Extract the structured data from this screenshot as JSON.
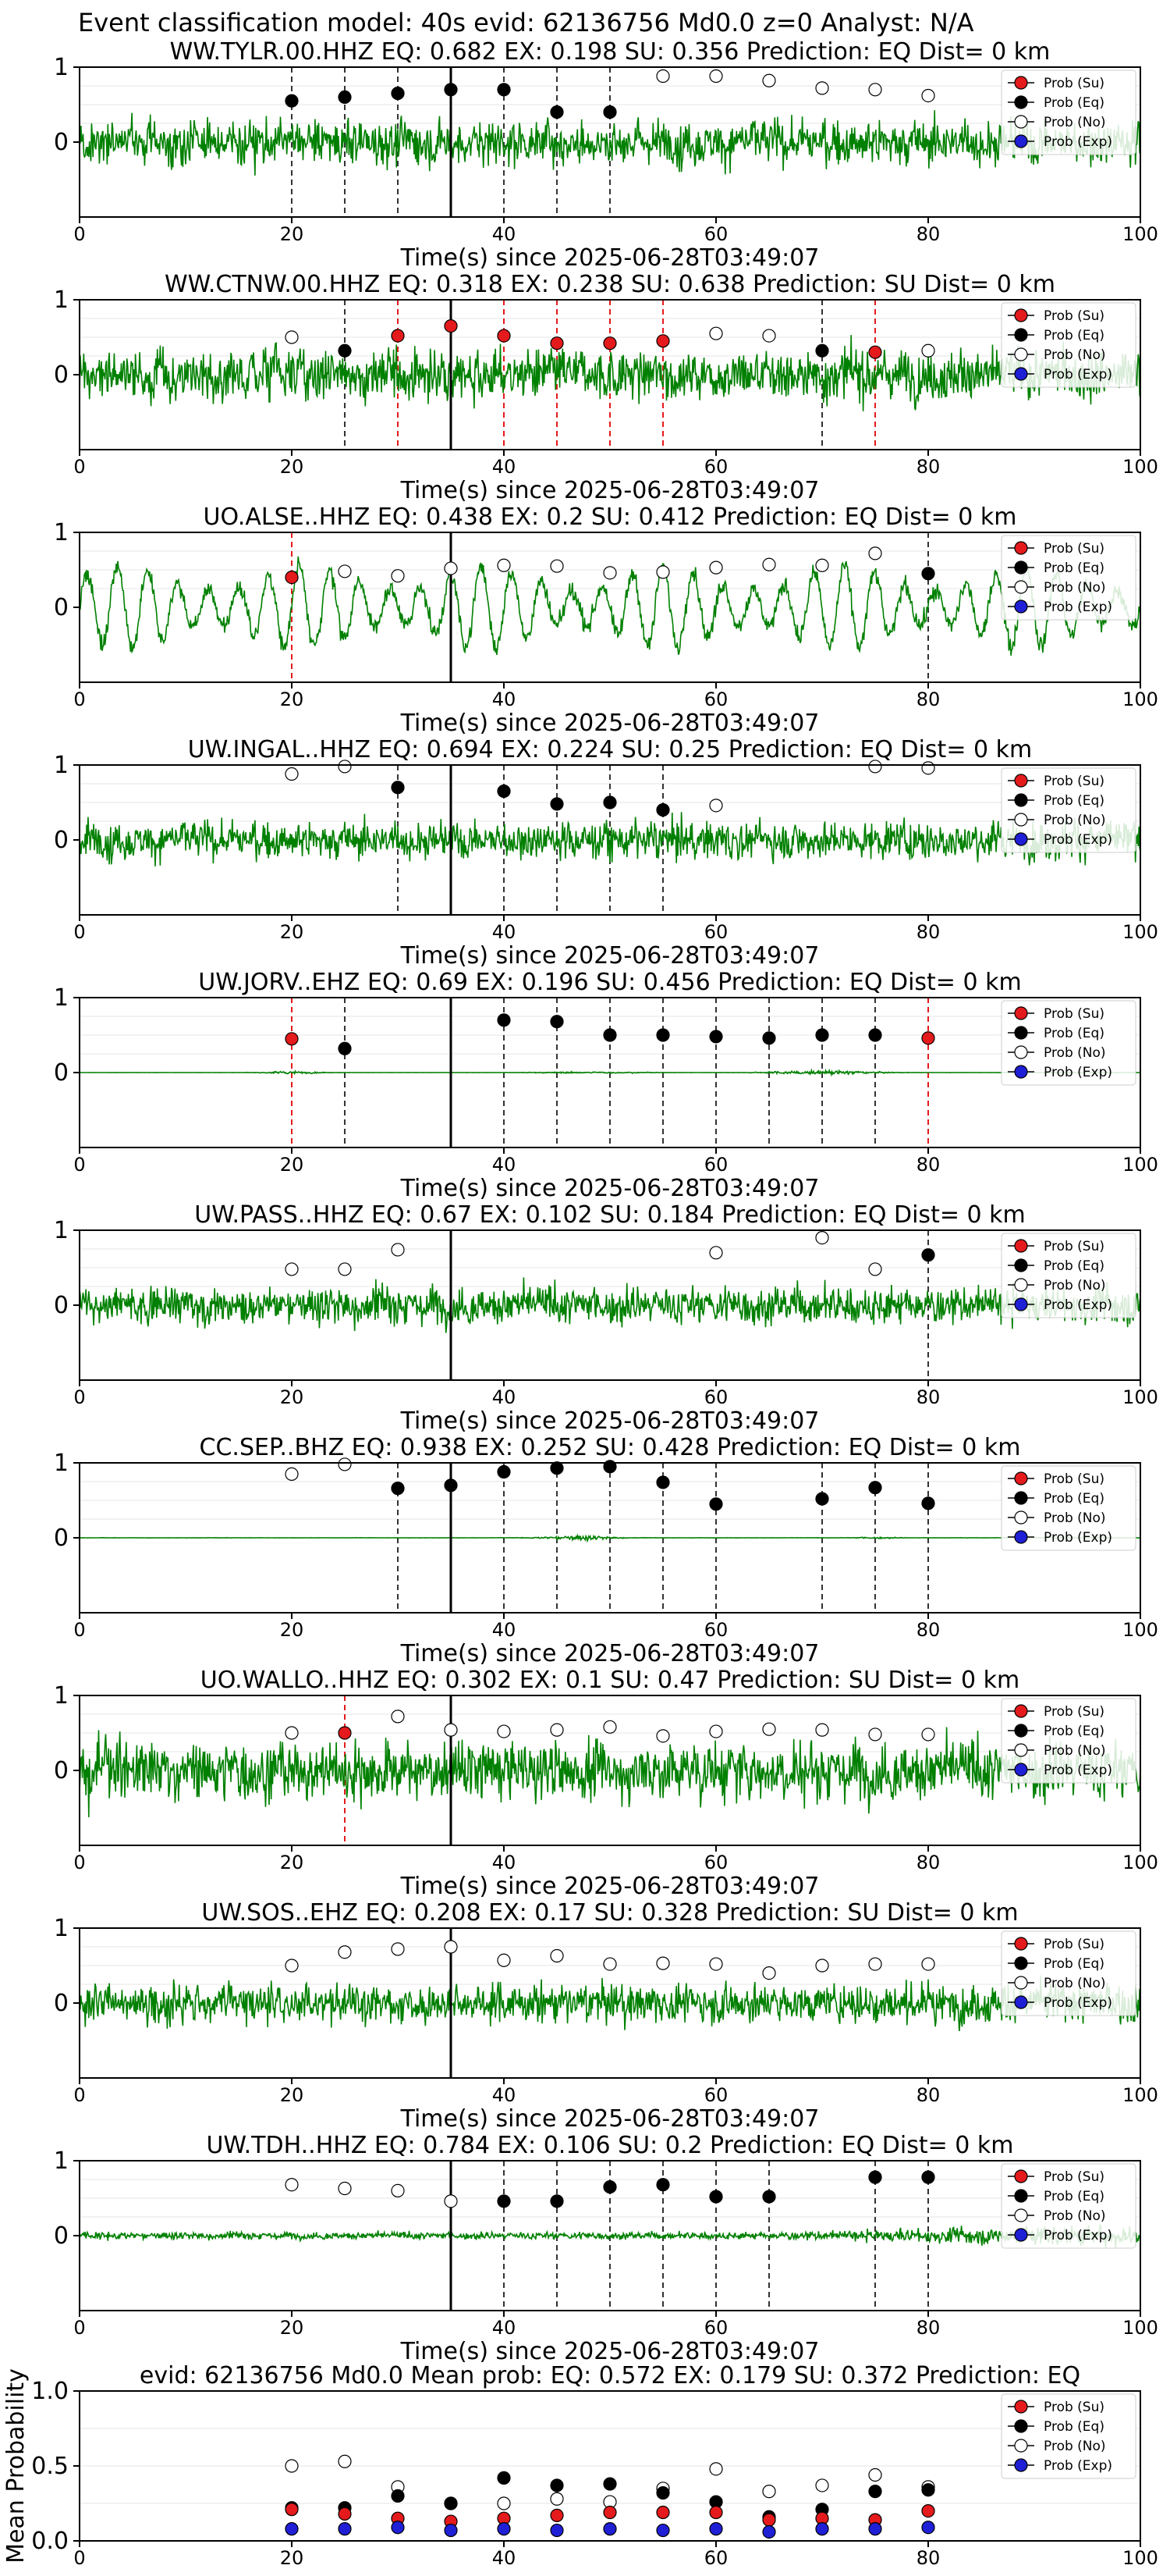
{
  "header": {
    "title": "Event classification model: 40s evid: 62136756 Md0.0 z=0 Analyst: N/A"
  },
  "legend": {
    "entries": [
      {
        "label": "Prob (Su)",
        "color": "#e41a1c",
        "fill": "filled"
      },
      {
        "label": "Prob (Eq)",
        "color": "#000000",
        "fill": "filled"
      },
      {
        "label": "Prob (No)",
        "color": "#ffffff",
        "fill": "hollow"
      },
      {
        "label": "Prob (Exp)",
        "color": "#1f1fd6",
        "fill": "filled"
      }
    ],
    "placement": "top-right"
  },
  "colors": {
    "trace": "#008000",
    "su": "#e41a1c",
    "eq": "#000000",
    "no": "#ffffff",
    "exp": "#1f1fd6",
    "grid": "#e6e6e6"
  },
  "chart_data": [
    {
      "type": "line",
      "title": "WW.TYLR.00.HHZ   EQ: 0.682  EX: 0.198  SU: 0.356   Prediction: EQ    Dist= 0 km",
      "xlabel": "Time(s) since 2025-06-28T03:49:07",
      "xlim": [
        0,
        100
      ],
      "xticks": [
        0,
        20,
        40,
        60,
        80,
        100
      ],
      "yticks": [
        0,
        1
      ],
      "ylim": [
        -1,
        1
      ],
      "pick_time": 35,
      "trace_style": "noisy",
      "trace_amplitude": 0.55,
      "markers": [
        {
          "x": 20,
          "y": 0.55,
          "cls": "eq"
        },
        {
          "x": 25,
          "y": 0.6,
          "cls": "eq"
        },
        {
          "x": 30,
          "y": 0.65,
          "cls": "eq"
        },
        {
          "x": 35,
          "y": 0.7,
          "cls": "eq"
        },
        {
          "x": 40,
          "y": 0.7,
          "cls": "eq"
        },
        {
          "x": 45,
          "y": 0.4,
          "cls": "eq"
        },
        {
          "x": 50,
          "y": 0.4,
          "cls": "eq"
        },
        {
          "x": 55,
          "y": 0.88,
          "cls": "no"
        },
        {
          "x": 60,
          "y": 0.88,
          "cls": "no"
        },
        {
          "x": 65,
          "y": 0.82,
          "cls": "no"
        },
        {
          "x": 70,
          "y": 0.72,
          "cls": "no"
        },
        {
          "x": 75,
          "y": 0.7,
          "cls": "no"
        },
        {
          "x": 80,
          "y": 0.62,
          "cls": "no"
        }
      ]
    },
    {
      "type": "line",
      "title": "WW.CTNW.00.HHZ   EQ: 0.318  EX: 0.238  SU: 0.638   Prediction: SU    Dist= 0 km",
      "xlabel": "Time(s) since 2025-06-28T03:49:07",
      "xlim": [
        0,
        100
      ],
      "xticks": [
        0,
        20,
        40,
        60,
        80,
        100
      ],
      "yticks": [
        0,
        1
      ],
      "ylim": [
        -1,
        1
      ],
      "pick_time": 35,
      "trace_style": "noisy",
      "trace_amplitude": 0.6,
      "markers": [
        {
          "x": 20,
          "y": 0.5,
          "cls": "no"
        },
        {
          "x": 25,
          "y": 0.32,
          "cls": "eq"
        },
        {
          "x": 30,
          "y": 0.52,
          "cls": "su"
        },
        {
          "x": 35,
          "y": 0.65,
          "cls": "su"
        },
        {
          "x": 40,
          "y": 0.52,
          "cls": "su"
        },
        {
          "x": 45,
          "y": 0.42,
          "cls": "su"
        },
        {
          "x": 50,
          "y": 0.42,
          "cls": "su"
        },
        {
          "x": 55,
          "y": 0.45,
          "cls": "su"
        },
        {
          "x": 60,
          "y": 0.55,
          "cls": "no"
        },
        {
          "x": 65,
          "y": 0.52,
          "cls": "no"
        },
        {
          "x": 70,
          "y": 0.32,
          "cls": "eq"
        },
        {
          "x": 75,
          "y": 0.3,
          "cls": "su"
        },
        {
          "x": 80,
          "y": 0.32,
          "cls": "no"
        }
      ]
    },
    {
      "type": "line",
      "title": "UO.ALSE..HHZ   EQ: 0.438  EX: 0.2  SU: 0.412   Prediction: EQ    Dist= 0 km",
      "xlabel": "Time(s) since 2025-06-28T03:49:07",
      "xlim": [
        0,
        100
      ],
      "xticks": [
        0,
        20,
        40,
        60,
        80,
        100
      ],
      "yticks": [
        0,
        1
      ],
      "ylim": [
        -1,
        1
      ],
      "pick_time": 35,
      "trace_style": "wave",
      "trace_amplitude": 0.6,
      "markers": [
        {
          "x": 20,
          "y": 0.4,
          "cls": "su"
        },
        {
          "x": 25,
          "y": 0.48,
          "cls": "no"
        },
        {
          "x": 30,
          "y": 0.42,
          "cls": "no"
        },
        {
          "x": 35,
          "y": 0.52,
          "cls": "no"
        },
        {
          "x": 40,
          "y": 0.56,
          "cls": "no"
        },
        {
          "x": 45,
          "y": 0.55,
          "cls": "no"
        },
        {
          "x": 50,
          "y": 0.46,
          "cls": "no"
        },
        {
          "x": 55,
          "y": 0.47,
          "cls": "no"
        },
        {
          "x": 60,
          "y": 0.53,
          "cls": "no"
        },
        {
          "x": 65,
          "y": 0.57,
          "cls": "no"
        },
        {
          "x": 70,
          "y": 0.56,
          "cls": "no"
        },
        {
          "x": 75,
          "y": 0.72,
          "cls": "no"
        },
        {
          "x": 80,
          "y": 0.45,
          "cls": "eq"
        }
      ]
    },
    {
      "type": "line",
      "title": "UW.INGAL..HHZ   EQ: 0.694  EX: 0.224  SU: 0.25   Prediction: EQ    Dist= 0 km",
      "xlabel": "Time(s) since 2025-06-28T03:49:07",
      "xlim": [
        0,
        100
      ],
      "xticks": [
        0,
        20,
        40,
        60,
        80,
        100
      ],
      "yticks": [
        0,
        1
      ],
      "ylim": [
        -1,
        1
      ],
      "pick_time": 35,
      "trace_style": "noisy",
      "trace_amplitude": 0.45,
      "markers": [
        {
          "x": 20,
          "y": 0.88,
          "cls": "no"
        },
        {
          "x": 25,
          "y": 0.98,
          "cls": "no"
        },
        {
          "x": 30,
          "y": 0.7,
          "cls": "eq"
        },
        {
          "x": 40,
          "y": 0.65,
          "cls": "eq"
        },
        {
          "x": 45,
          "y": 0.48,
          "cls": "eq"
        },
        {
          "x": 50,
          "y": 0.5,
          "cls": "eq"
        },
        {
          "x": 55,
          "y": 0.4,
          "cls": "eq"
        },
        {
          "x": 60,
          "y": 0.46,
          "cls": "no"
        },
        {
          "x": 75,
          "y": 0.98,
          "cls": "no"
        },
        {
          "x": 80,
          "y": 0.96,
          "cls": "no"
        }
      ]
    },
    {
      "type": "line",
      "title": "UW.JORV..EHZ   EQ: 0.69  EX: 0.196  SU: 0.456   Prediction: EQ    Dist= 0 km",
      "xlabel": "Time(s) since 2025-06-28T03:49:07",
      "xlim": [
        0,
        100
      ],
      "xticks": [
        0,
        20,
        40,
        60,
        80,
        100
      ],
      "yticks": [
        0,
        1
      ],
      "ylim": [
        -1,
        1
      ],
      "pick_time": 35,
      "trace_style": "bursts",
      "trace_amplitude": 0.05,
      "markers": [
        {
          "x": 20,
          "y": 0.45,
          "cls": "su"
        },
        {
          "x": 25,
          "y": 0.32,
          "cls": "eq"
        },
        {
          "x": 40,
          "y": 0.7,
          "cls": "eq"
        },
        {
          "x": 45,
          "y": 0.68,
          "cls": "eq"
        },
        {
          "x": 50,
          "y": 0.5,
          "cls": "eq"
        },
        {
          "x": 55,
          "y": 0.5,
          "cls": "eq"
        },
        {
          "x": 60,
          "y": 0.48,
          "cls": "eq"
        },
        {
          "x": 65,
          "y": 0.46,
          "cls": "eq"
        },
        {
          "x": 70,
          "y": 0.5,
          "cls": "eq"
        },
        {
          "x": 75,
          "y": 0.5,
          "cls": "eq"
        },
        {
          "x": 80,
          "y": 0.46,
          "cls": "su"
        }
      ]
    },
    {
      "type": "line",
      "title": "UW.PASS..HHZ   EQ: 0.67  EX: 0.102  SU: 0.184   Prediction: EQ    Dist= 0 km",
      "xlabel": "Time(s) since 2025-06-28T03:49:07",
      "xlim": [
        0,
        100
      ],
      "xticks": [
        0,
        20,
        40,
        60,
        80,
        100
      ],
      "yticks": [
        0,
        1
      ],
      "ylim": [
        -1,
        1
      ],
      "pick_time": 35,
      "trace_style": "noisy",
      "trace_amplitude": 0.45,
      "markers": [
        {
          "x": 20,
          "y": 0.48,
          "cls": "no"
        },
        {
          "x": 25,
          "y": 0.48,
          "cls": "no"
        },
        {
          "x": 30,
          "y": 0.74,
          "cls": "no"
        },
        {
          "x": 60,
          "y": 0.7,
          "cls": "no"
        },
        {
          "x": 70,
          "y": 0.9,
          "cls": "no"
        },
        {
          "x": 75,
          "y": 0.48,
          "cls": "no"
        },
        {
          "x": 80,
          "y": 0.67,
          "cls": "eq"
        }
      ]
    },
    {
      "type": "line",
      "title": "CC.SEP..BHZ   EQ: 0.938  EX: 0.252  SU: 0.428   Prediction: EQ    Dist= 0 km",
      "xlabel": "Time(s) since 2025-06-28T03:49:07",
      "xlim": [
        0,
        100
      ],
      "xticks": [
        0,
        20,
        40,
        60,
        80,
        100
      ],
      "yticks": [
        0,
        1
      ],
      "ylim": [
        -1,
        1
      ],
      "pick_time": 35,
      "trace_style": "quiet-burst",
      "trace_amplitude": 0.07,
      "markers": [
        {
          "x": 20,
          "y": 0.85,
          "cls": "no"
        },
        {
          "x": 25,
          "y": 0.98,
          "cls": "no"
        },
        {
          "x": 30,
          "y": 0.66,
          "cls": "eq"
        },
        {
          "x": 35,
          "y": 0.7,
          "cls": "eq"
        },
        {
          "x": 40,
          "y": 0.88,
          "cls": "eq"
        },
        {
          "x": 45,
          "y": 0.93,
          "cls": "eq"
        },
        {
          "x": 50,
          "y": 0.95,
          "cls": "eq"
        },
        {
          "x": 55,
          "y": 0.74,
          "cls": "eq"
        },
        {
          "x": 60,
          "y": 0.45,
          "cls": "eq"
        },
        {
          "x": 70,
          "y": 0.52,
          "cls": "eq"
        },
        {
          "x": 75,
          "y": 0.67,
          "cls": "eq"
        },
        {
          "x": 80,
          "y": 0.46,
          "cls": "eq"
        }
      ]
    },
    {
      "type": "line",
      "title": "UO.WALLO..HHZ   EQ: 0.302  EX: 0.1  SU: 0.47   Prediction: SU    Dist= 0 km",
      "xlabel": "Time(s) since 2025-06-28T03:49:07",
      "xlim": [
        0,
        100
      ],
      "xticks": [
        0,
        20,
        40,
        60,
        80,
        100
      ],
      "yticks": [
        0,
        1
      ],
      "ylim": [
        -1,
        1
      ],
      "pick_time": 35,
      "trace_style": "noisy",
      "trace_amplitude": 0.7,
      "markers": [
        {
          "x": 20,
          "y": 0.5,
          "cls": "no"
        },
        {
          "x": 25,
          "y": 0.5,
          "cls": "su"
        },
        {
          "x": 30,
          "y": 0.72,
          "cls": "no"
        },
        {
          "x": 35,
          "y": 0.54,
          "cls": "no"
        },
        {
          "x": 40,
          "y": 0.52,
          "cls": "no"
        },
        {
          "x": 45,
          "y": 0.54,
          "cls": "no"
        },
        {
          "x": 50,
          "y": 0.58,
          "cls": "no"
        },
        {
          "x": 55,
          "y": 0.46,
          "cls": "no"
        },
        {
          "x": 60,
          "y": 0.52,
          "cls": "no"
        },
        {
          "x": 65,
          "y": 0.55,
          "cls": "no"
        },
        {
          "x": 70,
          "y": 0.54,
          "cls": "no"
        },
        {
          "x": 75,
          "y": 0.48,
          "cls": "no"
        },
        {
          "x": 80,
          "y": 0.48,
          "cls": "no"
        }
      ]
    },
    {
      "type": "line",
      "title": "UW.SOS..EHZ   EQ: 0.208  EX: 0.17  SU: 0.328   Prediction: SU    Dist= 0 km",
      "xlabel": "Time(s) since 2025-06-28T03:49:07",
      "xlim": [
        0,
        100
      ],
      "xticks": [
        0,
        20,
        40,
        60,
        80,
        100
      ],
      "yticks": [
        0,
        1
      ],
      "ylim": [
        -1,
        1
      ],
      "pick_time": 35,
      "trace_style": "noisy",
      "trace_amplitude": 0.45,
      "markers": [
        {
          "x": 20,
          "y": 0.5,
          "cls": "no"
        },
        {
          "x": 25,
          "y": 0.68,
          "cls": "no"
        },
        {
          "x": 30,
          "y": 0.72,
          "cls": "no"
        },
        {
          "x": 35,
          "y": 0.75,
          "cls": "no"
        },
        {
          "x": 40,
          "y": 0.57,
          "cls": "no"
        },
        {
          "x": 45,
          "y": 0.63,
          "cls": "no"
        },
        {
          "x": 50,
          "y": 0.52,
          "cls": "no"
        },
        {
          "x": 55,
          "y": 0.53,
          "cls": "no"
        },
        {
          "x": 60,
          "y": 0.52,
          "cls": "no"
        },
        {
          "x": 65,
          "y": 0.4,
          "cls": "no"
        },
        {
          "x": 70,
          "y": 0.5,
          "cls": "no"
        },
        {
          "x": 75,
          "y": 0.52,
          "cls": "no"
        },
        {
          "x": 80,
          "y": 0.52,
          "cls": "no"
        }
      ]
    },
    {
      "type": "line",
      "title": "UW.TDH..HHZ   EQ: 0.784  EX: 0.106  SU: 0.2   Prediction: EQ    Dist= 0 km",
      "xlabel": "Time(s) since 2025-06-28T03:49:07",
      "xlim": [
        0,
        100
      ],
      "xticks": [
        0,
        20,
        40,
        60,
        80,
        100
      ],
      "yticks": [
        0,
        1
      ],
      "ylim": [
        -1,
        1
      ],
      "pick_time": 35,
      "trace_style": "mixed",
      "trace_amplitude": 0.3,
      "markers": [
        {
          "x": 20,
          "y": 0.68,
          "cls": "no"
        },
        {
          "x": 25,
          "y": 0.63,
          "cls": "no"
        },
        {
          "x": 30,
          "y": 0.6,
          "cls": "no"
        },
        {
          "x": 35,
          "y": 0.46,
          "cls": "no"
        },
        {
          "x": 40,
          "y": 0.46,
          "cls": "eq"
        },
        {
          "x": 45,
          "y": 0.46,
          "cls": "eq"
        },
        {
          "x": 50,
          "y": 0.65,
          "cls": "eq"
        },
        {
          "x": 55,
          "y": 0.68,
          "cls": "eq"
        },
        {
          "x": 60,
          "y": 0.52,
          "cls": "eq"
        },
        {
          "x": 65,
          "y": 0.52,
          "cls": "eq"
        },
        {
          "x": 75,
          "y": 0.78,
          "cls": "eq"
        },
        {
          "x": 80,
          "y": 0.78,
          "cls": "eq"
        }
      ]
    },
    {
      "type": "scatter",
      "title": "evid: 62136756  Md0.0   Mean prob:   EQ: 0.572  EX: 0.179  SU: 0.372   Prediction: EQ",
      "ylabel": "Mean Probability",
      "xlim": [
        0,
        100
      ],
      "xticks": [
        0,
        20,
        40,
        60,
        80,
        100
      ],
      "ylim": [
        0,
        1
      ],
      "yticks": [
        0.0,
        0.5,
        1.0
      ],
      "ytick_labels": [
        "0.0",
        "0.5",
        "1.0"
      ],
      "x": [
        20,
        25,
        30,
        35,
        40,
        45,
        50,
        55,
        60,
        65,
        70,
        75,
        80
      ],
      "series": [
        {
          "name": "Prob (No)",
          "cls": "no",
          "values": [
            0.5,
            0.53,
            0.36,
            0.25,
            0.25,
            0.28,
            0.26,
            0.35,
            0.48,
            0.33,
            0.37,
            0.44,
            0.36
          ]
        },
        {
          "name": "Prob (Eq)",
          "cls": "eq",
          "values": [
            0.22,
            0.22,
            0.3,
            0.25,
            0.42,
            0.37,
            0.38,
            0.32,
            0.26,
            0.16,
            0.21,
            0.33,
            0.34
          ]
        },
        {
          "name": "Prob (Su)",
          "cls": "su",
          "values": [
            0.21,
            0.18,
            0.15,
            0.13,
            0.15,
            0.17,
            0.19,
            0.19,
            0.19,
            0.14,
            0.15,
            0.14,
            0.2
          ]
        },
        {
          "name": "Prob (Exp)",
          "cls": "exp",
          "values": [
            0.08,
            0.08,
            0.09,
            0.07,
            0.08,
            0.07,
            0.08,
            0.07,
            0.08,
            0.06,
            0.08,
            0.08,
            0.09
          ]
        }
      ]
    }
  ]
}
